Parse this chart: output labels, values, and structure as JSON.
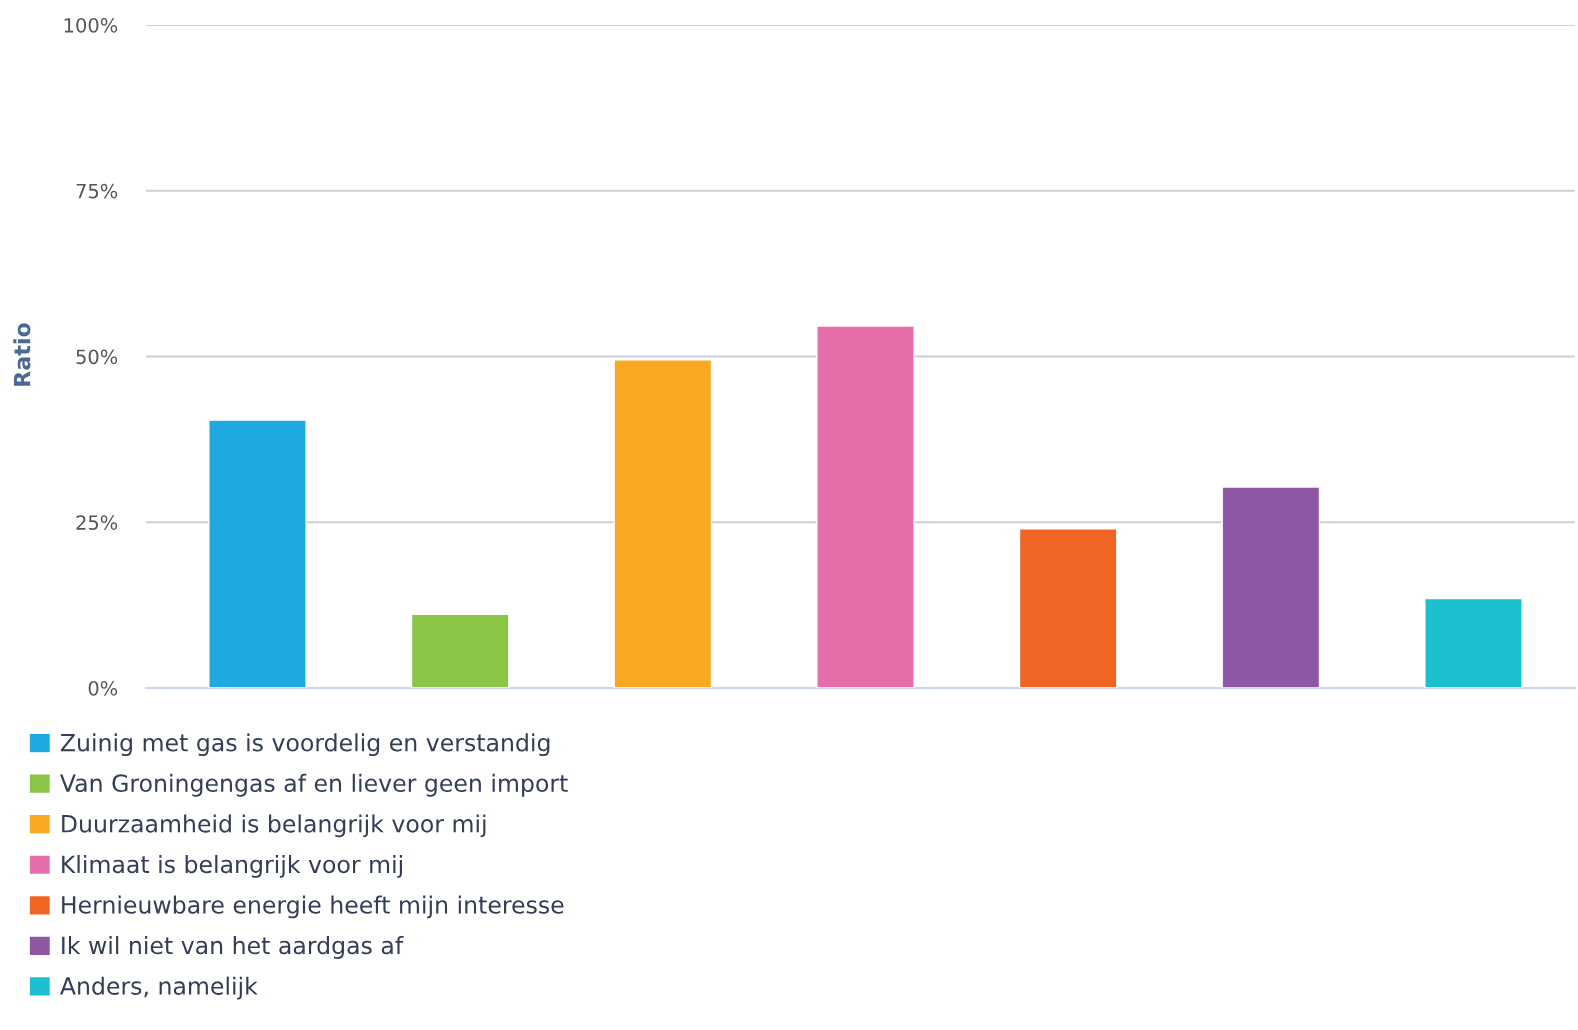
{
  "chart_data": {
    "type": "bar",
    "categories": [
      null,
      null,
      null,
      null,
      null,
      null,
      null
    ],
    "series": [
      {
        "name": "Zuinig met gas is voordelig en verstandig",
        "color": "#1fa9e1",
        "values": [
          40.4,
          null,
          null,
          null,
          null,
          null,
          null
        ]
      },
      {
        "name": "Van Groningengas af en liever geen import",
        "color": "#8bc546",
        "values": [
          null,
          11.1,
          null,
          null,
          null,
          null,
          null
        ]
      },
      {
        "name": "Duurzaamheid is belangrijk voor mij",
        "color": "#f9a823",
        "values": [
          null,
          null,
          49.5,
          null,
          null,
          null,
          null
        ]
      },
      {
        "name": "Klimaat is belangrijk voor mij",
        "color": "#e56ea8",
        "values": [
          null,
          null,
          null,
          54.6,
          null,
          null,
          null
        ]
      },
      {
        "name": "Hernieuwbare energie heeft mijn interesse",
        "color": "#f06524",
        "values": [
          null,
          null,
          null,
          null,
          24.0,
          null,
          null
        ]
      },
      {
        "name": "Ik wil niet van het aardgas af",
        "color": "#8f57a3",
        "values": [
          null,
          null,
          null,
          null,
          null,
          30.3,
          null
        ]
      },
      {
        "name": "Anders, namelijk",
        "color": "#1cbfcf",
        "values": [
          null,
          null,
          null,
          null,
          null,
          null,
          13.5
        ]
      }
    ],
    "ylabel": "Ratio",
    "ylim": [
      0,
      100
    ],
    "yticks": [
      {
        "value": 0,
        "label": "0%"
      },
      {
        "value": 25,
        "label": "25%"
      },
      {
        "value": 50,
        "label": "50%"
      },
      {
        "value": 75,
        "label": "75%"
      },
      {
        "value": 100,
        "label": "100%"
      }
    ],
    "grid": "y",
    "legend": "bottom",
    "tick_labels": "y"
  }
}
